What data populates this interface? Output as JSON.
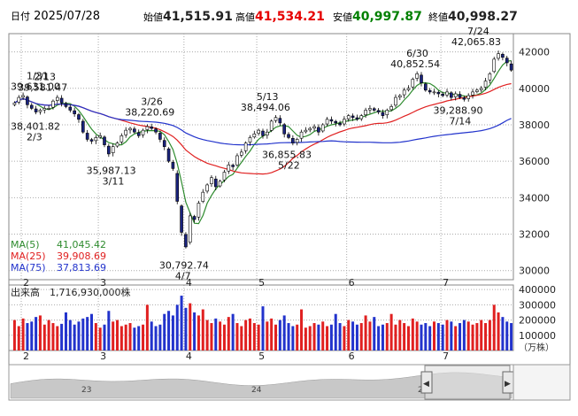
{
  "header": {
    "date_label": "日付",
    "date": "2025/07/28",
    "open_label": "始値",
    "open": "41,515.91",
    "high_label": "高値",
    "high": "41,534.21",
    "low_label": "安値",
    "low": "40,997.87",
    "close_label": "終値",
    "close": "40,998.27"
  },
  "legend": {
    "ma5_label": "MA(5)",
    "ma5_value": "41,045.42",
    "ma25_label": "MA(25)",
    "ma25_value": "39,908.69",
    "ma75_label": "MA(75)",
    "ma75_value": "37,813.69"
  },
  "volume": {
    "label": "出来高",
    "value": "1,716,930,000株",
    "unit": "（万株）",
    "y_ticks": [
      "400000",
      "300000",
      "200000",
      "100000"
    ]
  },
  "navigator": {
    "labels": [
      "23",
      "24",
      "2"
    ],
    "left_handle": "◀",
    "right_handle": "▶"
  },
  "colors": {
    "up_candle": "#ffffff",
    "candle_outline": "#000000",
    "down_candle": "#1a237e",
    "ma5": "#2e8b2e",
    "ma25": "#e02020",
    "ma75": "#2233cc",
    "volume_up": "#e02020",
    "volume_down": "#2233cc",
    "grid": "#aaaaaa",
    "navigator_fill": "#c0c0c0",
    "navigator_window": "#d8d8d8"
  },
  "chart_data": {
    "type": "candlestick",
    "x_tick_labels": [
      "2",
      "3",
      "4",
      "5",
      "6",
      "7"
    ],
    "y_ticks": [
      30000,
      32000,
      34000,
      36000,
      38000,
      40000,
      42000
    ],
    "ylim": [
      29500,
      43000
    ],
    "annotations": [
      {
        "date": "1/31",
        "value": 39631
      },
      {
        "date": "2/13",
        "value": 39581.47
      },
      {
        "date": "2/3",
        "value": 38401.82
      },
      {
        "date": "3/26",
        "value": 38220.69
      },
      {
        "date": "3/11",
        "value": 35987.13
      },
      {
        "date": "4/7",
        "value": 30792.74
      },
      {
        "date": "5/13",
        "value": 38494.06
      },
      {
        "date": "5/22",
        "value": 36855.83
      },
      {
        "date": "6/30",
        "value": 40852.54
      },
      {
        "date": "7/24",
        "value": 42065.83
      },
      {
        "date": "7/14",
        "value": 39288.9
      }
    ],
    "approx_daily_close": [
      39200,
      39500,
      39600,
      39100,
      38900,
      38700,
      38800,
      38900,
      38900,
      39300,
      39500,
      39200,
      39000,
      38800,
      38600,
      38300,
      37600,
      37200,
      37100,
      37300,
      37400,
      36900,
      36400,
      36800,
      37000,
      37400,
      37700,
      37800,
      37600,
      37400,
      37700,
      37900,
      37800,
      37600,
      37200,
      36800,
      36000,
      35600,
      33800,
      32100,
      31300,
      33000,
      32800,
      33700,
      34300,
      34700,
      35100,
      34600,
      34900,
      35400,
      35800,
      35700,
      36300,
      36500,
      37000,
      37300,
      37500,
      37700,
      37400,
      37600,
      38200,
      38400,
      38100,
      37500,
      37300,
      37000,
      37200,
      37600,
      37700,
      37800,
      37900,
      37600,
      38000,
      38300,
      38200,
      38100,
      38000,
      38300,
      38500,
      38400,
      38300,
      38500,
      38800,
      38900,
      38800,
      38700,
      38500,
      38800,
      39000,
      39500,
      39600,
      39900,
      40000,
      40500,
      40800,
      40300,
      39900,
      39800,
      39800,
      39700,
      39600,
      39800,
      39500,
      39700,
      39500,
      39400,
      39600,
      39800,
      39900,
      40000,
      40400,
      40800,
      41600,
      41900,
      41700,
      41400,
      41000
    ],
    "volume_values": [
      200000,
      160000,
      210000,
      180000,
      190000,
      220000,
      230000,
      170000,
      200000,
      180000,
      160000,
      175000,
      250000,
      200000,
      170000,
      190000,
      210000,
      220000,
      240000,
      180000,
      150000,
      170000,
      260000,
      190000,
      200000,
      160000,
      170000,
      180000,
      150000,
      160000,
      170000,
      300000,
      190000,
      160000,
      170000,
      240000,
      260000,
      230000,
      300000,
      360000,
      280000,
      310000,
      250000,
      230000,
      270000,
      200000,
      180000,
      210000,
      190000,
      170000,
      220000,
      240000,
      180000,
      160000,
      200000,
      210000,
      180000,
      170000,
      290000,
      190000,
      210000,
      170000,
      200000,
      230000,
      180000,
      160000,
      170000,
      270000,
      150000,
      160000,
      180000,
      170000,
      190000,
      160000,
      170000,
      240000,
      180000,
      160000,
      200000,
      190000,
      170000,
      180000,
      230000,
      190000,
      220000,
      160000,
      170000,
      180000,
      240000,
      170000,
      200000,
      180000,
      160000,
      210000,
      190000,
      170000,
      180000,
      160000,
      190000,
      180000,
      170000,
      200000,
      190000,
      160000,
      180000,
      200000,
      190000,
      170000,
      180000,
      200000,
      180000,
      200000,
      300000,
      250000,
      220000,
      190000,
      180000
    ]
  }
}
